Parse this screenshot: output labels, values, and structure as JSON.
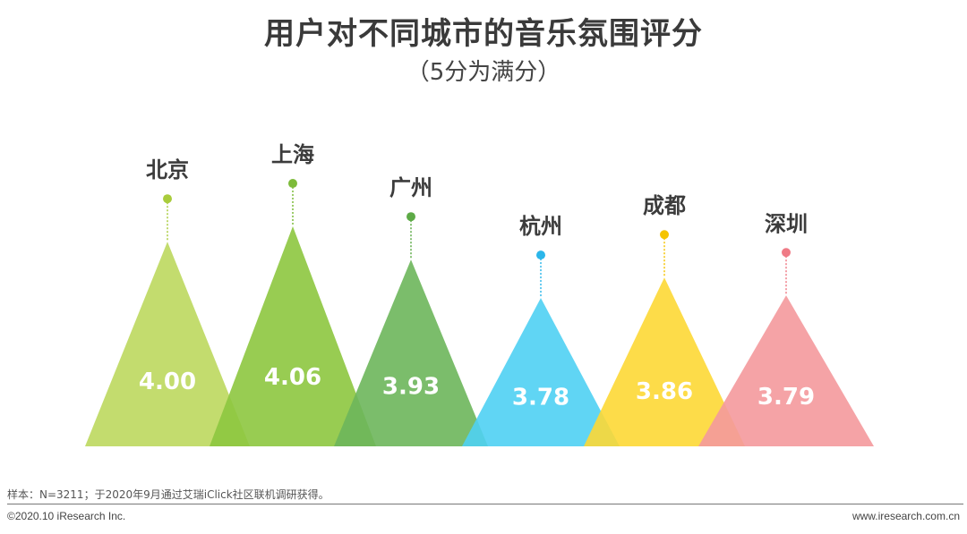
{
  "chart_data": {
    "type": "bar",
    "title": "用户对不同城市的音乐氛围评分",
    "subtitle": "（5分为满分）",
    "categories": [
      "北京",
      "上海",
      "广州",
      "杭州",
      "成都",
      "深圳"
    ],
    "values": [
      4.0,
      4.06,
      3.93,
      3.78,
      3.86,
      3.79
    ],
    "value_labels": [
      "4.00",
      "4.06",
      "3.93",
      "3.78",
      "3.86",
      "3.79"
    ],
    "colors": [
      "#bcd85e",
      "#8dc63f",
      "#6db65b",
      "#4fd0f3",
      "#fdd835",
      "#f4999c"
    ],
    "dot_colors": [
      "#a9cc3c",
      "#7dbb3a",
      "#5daa46",
      "#2bb6ea",
      "#f5c400",
      "#ef7b86"
    ],
    "grid": false,
    "legend": "none"
  },
  "footer": {
    "note": "样本：N=3211；于2020年9月通过艾瑞iClick社区联机调研获得。",
    "copyright": "©2020.10 iResearch Inc.",
    "website": "www.iresearch.com.cn"
  }
}
